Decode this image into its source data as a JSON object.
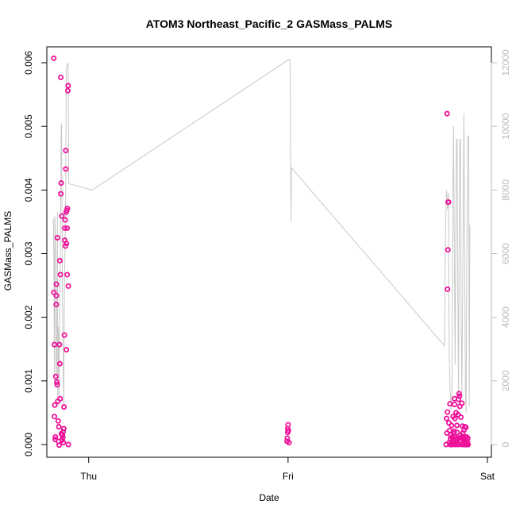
{
  "chart_data": {
    "type": "scatter",
    "title": "ATOM3 Northeast_Pacific_2 GASMass_PALMS",
    "xlabel": "Date",
    "ylabel": "GASMass_PALMS",
    "x_ticks": [
      "Thu",
      "Fri",
      "Sat"
    ],
    "x_range_days": [
      -0.21,
      2.02
    ],
    "ylim": [
      -0.0002,
      0.00625
    ],
    "y_ticks": [
      0.0,
      0.001,
      0.002,
      0.003,
      0.004,
      0.005,
      0.006
    ],
    "y_tick_labels": [
      "0.000",
      "0.001",
      "0.002",
      "0.003",
      "0.004",
      "0.005",
      "0.006"
    ],
    "y2lim": [
      -400,
      12500
    ],
    "y2_ticks": [
      0,
      2000,
      4000,
      6000,
      8000,
      10000,
      12000
    ],
    "y2_tick_labels": [
      "0",
      "2000",
      "4000",
      "6000",
      "8000",
      "10000",
      "12000"
    ],
    "grid": false,
    "legend": "none",
    "series": [
      {
        "kind": "points",
        "color": "#ee1199",
        "points": [
          [
            -0.175,
            0.00607
          ],
          [
            -0.175,
            0.00239
          ],
          [
            -0.172,
            0.00157
          ],
          [
            -0.172,
            0.00044
          ],
          [
            -0.17,
            0.00062
          ],
          [
            -0.168,
            8e-05
          ],
          [
            -0.167,
            0.00012
          ],
          [
            -0.165,
            0.00107
          ],
          [
            -0.163,
            0.0022
          ],
          [
            -0.162,
            0.00234
          ],
          [
            -0.162,
            0.00252
          ],
          [
            -0.16,
            0.00098
          ],
          [
            -0.158,
            0.00094
          ],
          [
            -0.157,
            0.00325
          ],
          [
            -0.155,
            0.00068
          ],
          [
            -0.153,
            0.00037
          ],
          [
            -0.152,
            5e-05
          ],
          [
            -0.15,
            0.00028
          ],
          [
            -0.148,
            -1e-05
          ],
          [
            -0.147,
            0.00157
          ],
          [
            -0.145,
            0.00127
          ],
          [
            -0.145,
            0.00289
          ],
          [
            -0.143,
            0.00072
          ],
          [
            -0.142,
            0.00267
          ],
          [
            -0.14,
            0.00577
          ],
          [
            -0.14,
            0.00394
          ],
          [
            -0.138,
            0.00411
          ],
          [
            -0.137,
            0.00017
          ],
          [
            -0.135,
            0.00359
          ],
          [
            -0.133,
            7e-05
          ],
          [
            -0.132,
            0.00015
          ],
          [
            -0.13,
            0.00011
          ],
          [
            -0.128,
            0.0002
          ],
          [
            -0.127,
            3e-05
          ],
          [
            -0.125,
            0.00025
          ],
          [
            -0.124,
            0.00059
          ],
          [
            -0.122,
            0.00172
          ],
          [
            -0.12,
            0.0034
          ],
          [
            -0.12,
            0.00321
          ],
          [
            -0.118,
            0.00353
          ],
          [
            -0.117,
            0.00312
          ],
          [
            -0.115,
            0.00433
          ],
          [
            -0.115,
            0.00462
          ],
          [
            -0.113,
            0.00365
          ],
          [
            -0.112,
            0.00149
          ],
          [
            -0.112,
            0.00316
          ],
          [
            -0.11,
            0.00368
          ],
          [
            -0.108,
            0.0034
          ],
          [
            -0.108,
            0.00267
          ],
          [
            -0.107,
            0.00371
          ],
          [
            -0.105,
            0.00556
          ],
          [
            -0.103,
            0.00564
          ],
          [
            -0.102,
            0.00249
          ],
          [
            -0.102,
            0.0
          ],
          [
            0.995,
            5e-05
          ],
          [
            0.996,
            0.0001
          ],
          [
            0.998,
            0.00025
          ],
          [
            0.998,
            0.00019
          ],
          [
            1.0,
            0.00031
          ],
          [
            1.002,
            0.00022
          ],
          [
            1.005,
            3e-05
          ],
          [
            1.793,
            0.0
          ],
          [
            1.795,
            0.00041
          ],
          [
            1.797,
            0.00018
          ],
          [
            1.798,
            0.0052
          ],
          [
            1.8,
            0.00051
          ],
          [
            1.8,
            0.00244
          ],
          [
            1.802,
            0.00306
          ],
          [
            1.803,
            0.00381
          ],
          [
            1.805,
            0.00381
          ],
          [
            1.807,
            0.00034
          ],
          [
            1.808,
            3e-05
          ],
          [
            1.81,
            0.00022
          ],
          [
            1.812,
            0.00064
          ],
          [
            1.813,
            0.0
          ],
          [
            1.815,
            9e-05
          ],
          [
            1.817,
            0.00015
          ],
          [
            1.818,
            0.0
          ],
          [
            1.82,
            0.0003
          ],
          [
            1.822,
            4e-05
          ],
          [
            1.823,
            0.00011
          ],
          [
            1.825,
            0.00012
          ],
          [
            1.827,
            0.0
          ],
          [
            1.828,
            0.00044
          ],
          [
            1.83,
            7e-05
          ],
          [
            1.832,
            0.00018
          ],
          [
            1.833,
            0.00021
          ],
          [
            1.835,
            0.00063
          ],
          [
            1.835,
            0.00072
          ],
          [
            1.837,
            0.00041
          ],
          [
            1.838,
            0.00012
          ],
          [
            1.84,
            0.0
          ],
          [
            1.842,
            7e-05
          ],
          [
            1.843,
            0.0005
          ],
          [
            1.845,
            9e-05
          ],
          [
            1.847,
            0.0003
          ],
          [
            1.848,
            0.00019
          ],
          [
            1.85,
            3e-05
          ],
          [
            1.852,
            0.0
          ],
          [
            1.853,
            0.00047
          ],
          [
            1.855,
            0.00071
          ],
          [
            1.857,
            0.0001
          ],
          [
            1.858,
            0.0008
          ],
          [
            1.86,
            0.00076
          ],
          [
            1.862,
            0.0006
          ],
          [
            1.863,
            5e-05
          ],
          [
            1.865,
            0.00015
          ],
          [
            1.867,
            0.00043
          ],
          [
            1.868,
            0.0
          ],
          [
            1.87,
            0.0001
          ],
          [
            1.872,
            0.00065
          ],
          [
            1.873,
            0.00012
          ],
          [
            1.875,
            0.00029
          ],
          [
            1.877,
            0.00018
          ],
          [
            1.878,
            0.0
          ],
          [
            1.88,
            8e-05
          ],
          [
            1.882,
            0.00012
          ],
          [
            1.883,
            0.00023
          ],
          [
            1.885,
            0.0
          ],
          [
            1.887,
            0.00028
          ],
          [
            1.888,
            4e-05
          ],
          [
            1.89,
            9e-05
          ],
          [
            1.892,
            0.00027
          ],
          [
            1.893,
            0.0
          ],
          [
            1.895,
            0.00012
          ],
          [
            1.897,
            0.0
          ],
          [
            1.898,
            5e-05
          ],
          [
            1.9,
            3e-05
          ],
          [
            1.902,
            0.0001
          ],
          [
            1.903,
            0.0
          ]
        ]
      },
      {
        "kind": "line",
        "color": "#c8c8c8",
        "axis": "right",
        "points": [
          [
            -0.177,
            7100
          ],
          [
            -0.175,
            5800
          ],
          [
            -0.172,
            2000
          ],
          [
            -0.17,
            7200
          ],
          [
            -0.167,
            6500
          ],
          [
            -0.165,
            3000
          ],
          [
            -0.162,
            1800
          ],
          [
            -0.16,
            3300
          ],
          [
            -0.157,
            7300
          ],
          [
            -0.155,
            1200
          ],
          [
            -0.152,
            3700
          ],
          [
            -0.148,
            1500
          ],
          [
            -0.147,
            3500
          ],
          [
            -0.142,
            6000
          ],
          [
            -0.138,
            10000
          ],
          [
            -0.136,
            10100
          ],
          [
            -0.132,
            5000
          ],
          [
            -0.128,
            2500
          ],
          [
            -0.125,
            1200
          ],
          [
            -0.122,
            4800
          ],
          [
            -0.118,
            6500
          ],
          [
            -0.115,
            8200
          ],
          [
            -0.113,
            11800
          ],
          [
            -0.11,
            11900
          ],
          [
            -0.107,
            11900
          ],
          [
            -0.103,
            12000
          ],
          [
            -0.1,
            8200
          ],
          [
            0.018,
            8000
          ],
          [
            1.003,
            12100
          ],
          [
            1.01,
            12100
          ],
          [
            1.015,
            7000
          ],
          [
            1.017,
            8700
          ],
          [
            1.785,
            3100
          ],
          [
            1.79,
            6800
          ],
          [
            1.795,
            8000
          ],
          [
            1.8,
            7400
          ],
          [
            1.805,
            7900
          ],
          [
            1.808,
            3200
          ],
          [
            1.812,
            1800
          ],
          [
            1.818,
            1100
          ],
          [
            1.822,
            1700
          ],
          [
            1.825,
            5800
          ],
          [
            1.83,
            10000
          ],
          [
            1.835,
            5500
          ],
          [
            1.838,
            2500
          ],
          [
            1.842,
            6800
          ],
          [
            1.845,
            9600
          ],
          [
            1.848,
            9600
          ],
          [
            1.852,
            4500
          ],
          [
            1.855,
            1500
          ],
          [
            1.858,
            6000
          ],
          [
            1.862,
            9600
          ],
          [
            1.865,
            9600
          ],
          [
            1.868,
            4500
          ],
          [
            1.872,
            1500
          ],
          [
            1.878,
            6500
          ],
          [
            1.882,
            10400
          ],
          [
            1.885,
            7000
          ],
          [
            1.89,
            1500
          ],
          [
            1.893,
            1000
          ],
          [
            1.897,
            6000
          ],
          [
            1.902,
            9700
          ],
          [
            1.906,
            9700
          ],
          [
            1.909,
            1200
          ],
          [
            1.912,
            6900
          ]
        ]
      }
    ]
  }
}
